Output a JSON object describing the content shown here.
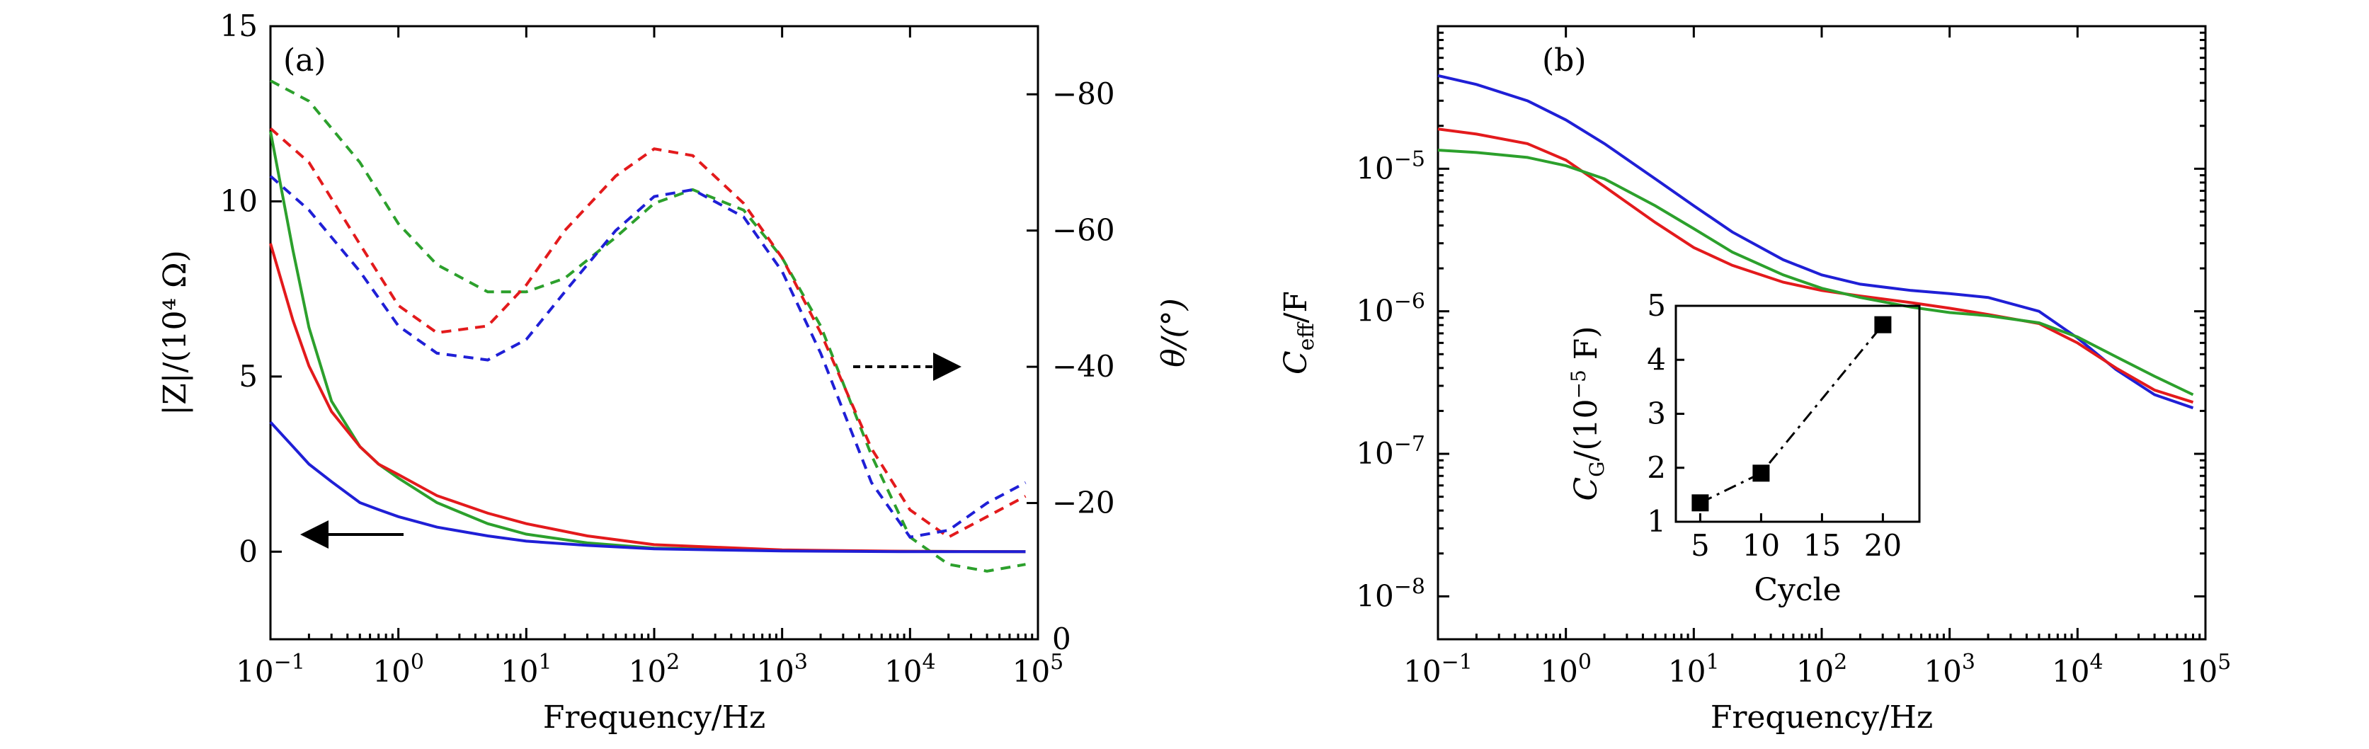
{
  "chart_data": [
    {
      "panel_label": "(a)",
      "type": "line",
      "x_scale": "log",
      "xlim": [
        0.1,
        100000
      ],
      "x_tick_values": [
        0.1,
        1,
        10,
        100,
        1000,
        10000,
        100000
      ],
      "x_tick_mantissa": "10",
      "x_tick_exponents": [
        "−1",
        "0",
        "1",
        "2",
        "3",
        "4",
        "5"
      ],
      "xlabel": "Frequency/Hz",
      "ylabel_left": "|Z|/(10⁴ Ω)",
      "ylim_left": [
        -2.5,
        15
      ],
      "y_ticks_left": [
        0,
        5,
        10,
        15
      ],
      "y_tick_labels_left": [
        "0",
        "5",
        "10",
        "15"
      ],
      "ylabel_right": "θ/(°)",
      "ylim_right": [
        0,
        -90
      ],
      "y_ticks_right": [
        0,
        -20,
        -40,
        -60,
        -80
      ],
      "y_tick_labels_right": [
        "0",
        "−20",
        "−40",
        "−60",
        "−80"
      ],
      "arrow_left_note": "solid curves → left axis",
      "arrow_right_note": "dashed curves → right axis",
      "series_impedance": [
        {
          "color": "#2ca02c",
          "axis": "left",
          "style": "solid",
          "x": [
            0.1,
            0.15,
            0.2,
            0.3,
            0.5,
            0.7,
            1,
            2,
            5,
            10,
            30,
            100,
            1000,
            10000,
            80000
          ],
          "y": [
            12.0,
            8.6,
            6.4,
            4.3,
            3.0,
            2.5,
            2.1,
            1.4,
            0.8,
            0.5,
            0.25,
            0.1,
            0.03,
            0.01,
            0.0
          ]
        },
        {
          "color": "#e31a1c",
          "axis": "left",
          "style": "solid",
          "x": [
            0.1,
            0.15,
            0.2,
            0.3,
            0.5,
            0.7,
            1,
            2,
            5,
            10,
            30,
            100,
            1000,
            10000,
            80000
          ],
          "y": [
            8.8,
            6.6,
            5.3,
            4.0,
            3.0,
            2.5,
            2.2,
            1.6,
            1.1,
            0.8,
            0.45,
            0.2,
            0.05,
            0.01,
            0.0
          ]
        },
        {
          "color": "#1f1fd6",
          "axis": "left",
          "style": "solid",
          "x": [
            0.1,
            0.15,
            0.2,
            0.3,
            0.5,
            0.7,
            1,
            2,
            5,
            10,
            30,
            100,
            1000,
            10000,
            80000
          ],
          "y": [
            3.7,
            3.0,
            2.5,
            2.0,
            1.4,
            1.2,
            1.0,
            0.7,
            0.45,
            0.3,
            0.18,
            0.08,
            0.02,
            0.0,
            0.0
          ]
        }
      ],
      "series_phase": [
        {
          "color": "#2ca02c",
          "axis": "right",
          "style": "dashed",
          "x": [
            0.1,
            0.2,
            0.5,
            1,
            2,
            5,
            10,
            20,
            50,
            100,
            200,
            500,
            1000,
            2000,
            5000,
            10000,
            20000,
            40000,
            80000
          ],
          "y": [
            -82,
            -79,
            -70,
            -61,
            -55,
            -51,
            -51,
            -53,
            -59,
            -64,
            -66,
            -63,
            -56,
            -46,
            -27,
            -15,
            -11,
            -10,
            -11
          ]
        },
        {
          "color": "#e31a1c",
          "axis": "right",
          "style": "dashed",
          "x": [
            0.1,
            0.2,
            0.5,
            1,
            2,
            5,
            10,
            20,
            50,
            100,
            200,
            500,
            1000,
            2000,
            5000,
            10000,
            20000,
            40000,
            80000
          ],
          "y": [
            -75,
            -70,
            -58,
            -49,
            -45,
            -46,
            -52,
            -60,
            -68,
            -72,
            -71,
            -64,
            -56,
            -45,
            -28,
            -19,
            -15,
            -18,
            -21
          ]
        },
        {
          "color": "#1f1fd6",
          "axis": "right",
          "style": "dashed",
          "x": [
            0.1,
            0.2,
            0.5,
            1,
            2,
            5,
            10,
            20,
            50,
            100,
            200,
            500,
            1000,
            2000,
            5000,
            10000,
            20000,
            40000,
            80000
          ],
          "y": [
            -68,
            -63,
            -54,
            -46,
            -42,
            -41,
            -44,
            -51,
            -60,
            -65,
            -66,
            -62,
            -54,
            -42,
            -23,
            -15,
            -16,
            -20,
            -23
          ]
        }
      ]
    },
    {
      "panel_label": "(b)",
      "type": "line",
      "x_scale": "log",
      "y_scale": "log",
      "xlim": [
        0.1,
        100000
      ],
      "x_tick_values": [
        0.1,
        1,
        10,
        100,
        1000,
        10000,
        100000
      ],
      "x_tick_mantissa": "10",
      "x_tick_exponents": [
        "−1",
        "0",
        "1",
        "2",
        "3",
        "4",
        "5"
      ],
      "xlabel": "Frequency/Hz",
      "ylabel": "C_eff/F",
      "ylabel_main": "C",
      "ylabel_sub": "eff",
      "ylabel_tail": "/F",
      "ylim": [
        5e-09,
        0.0001
      ],
      "y_tick_values": [
        1e-08,
        1e-07,
        1e-06,
        1e-05
      ],
      "y_tick_mantissa": "10",
      "y_tick_exponents": [
        "−8",
        "−7",
        "−6",
        "−5"
      ],
      "series": [
        {
          "color": "#1f1fd6",
          "x": [
            0.1,
            0.2,
            0.5,
            1,
            2,
            5,
            10,
            20,
            50,
            100,
            200,
            500,
            1000,
            2000,
            5000,
            10000,
            20000,
            40000,
            80000
          ],
          "y": [
            4.5e-05,
            3.9e-05,
            3e-05,
            2.2e-05,
            1.5e-05,
            8.5e-06,
            5.5e-06,
            3.6e-06,
            2.3e-06,
            1.8e-06,
            1.55e-06,
            1.4e-06,
            1.33e-06,
            1.25e-06,
            1e-06,
            6.5e-07,
            3.9e-07,
            2.6e-07,
            2.1e-07
          ]
        },
        {
          "color": "#e31a1c",
          "x": [
            0.1,
            0.2,
            0.5,
            1,
            2,
            5,
            10,
            20,
            50,
            100,
            200,
            500,
            1000,
            2000,
            5000,
            10000,
            20000,
            40000,
            80000
          ],
          "y": [
            1.9e-05,
            1.75e-05,
            1.5e-05,
            1.15e-05,
            7.5e-06,
            4.2e-06,
            2.8e-06,
            2.1e-06,
            1.6e-06,
            1.4e-06,
            1.28e-06,
            1.15e-06,
            1.05e-06,
            9.5e-07,
            8.2e-07,
            6e-07,
            4e-07,
            2.8e-07,
            2.3e-07
          ]
        },
        {
          "color": "#2ca02c",
          "x": [
            0.1,
            0.2,
            0.5,
            1,
            2,
            5,
            10,
            20,
            50,
            100,
            200,
            500,
            1000,
            2000,
            5000,
            10000,
            20000,
            40000,
            80000
          ],
          "y": [
            1.35e-05,
            1.3e-05,
            1.2e-05,
            1.05e-05,
            8.5e-06,
            5.5e-06,
            3.8e-06,
            2.6e-06,
            1.8e-06,
            1.45e-06,
            1.25e-06,
            1.07e-06,
            9.8e-07,
            9.3e-07,
            8.3e-07,
            6.6e-07,
            4.8e-07,
            3.5e-07,
            2.6e-07
          ]
        }
      ],
      "inset": {
        "type": "scatter",
        "xlabel": "Cycle",
        "ylabel": "C_G/(10^−5 F)",
        "ylabel_main": "C",
        "ylabel_sub": "G",
        "ylabel_tail": "/(10",
        "ylabel_exp": "−5",
        "ylabel_end": " F)",
        "xlim": [
          3,
          23
        ],
        "ylim": [
          1,
          5
        ],
        "x_ticks": [
          5,
          10,
          15,
          20
        ],
        "x_tick_labels": [
          "5",
          "10",
          "15",
          "20"
        ],
        "y_ticks": [
          1,
          2,
          3,
          4,
          5
        ],
        "y_tick_labels": [
          "1",
          "2",
          "3",
          "4",
          "5"
        ],
        "x": [
          5,
          10,
          20
        ],
        "y": [
          1.35,
          1.9,
          4.65
        ],
        "line_style": "dash-dot",
        "marker": "square"
      }
    }
  ]
}
